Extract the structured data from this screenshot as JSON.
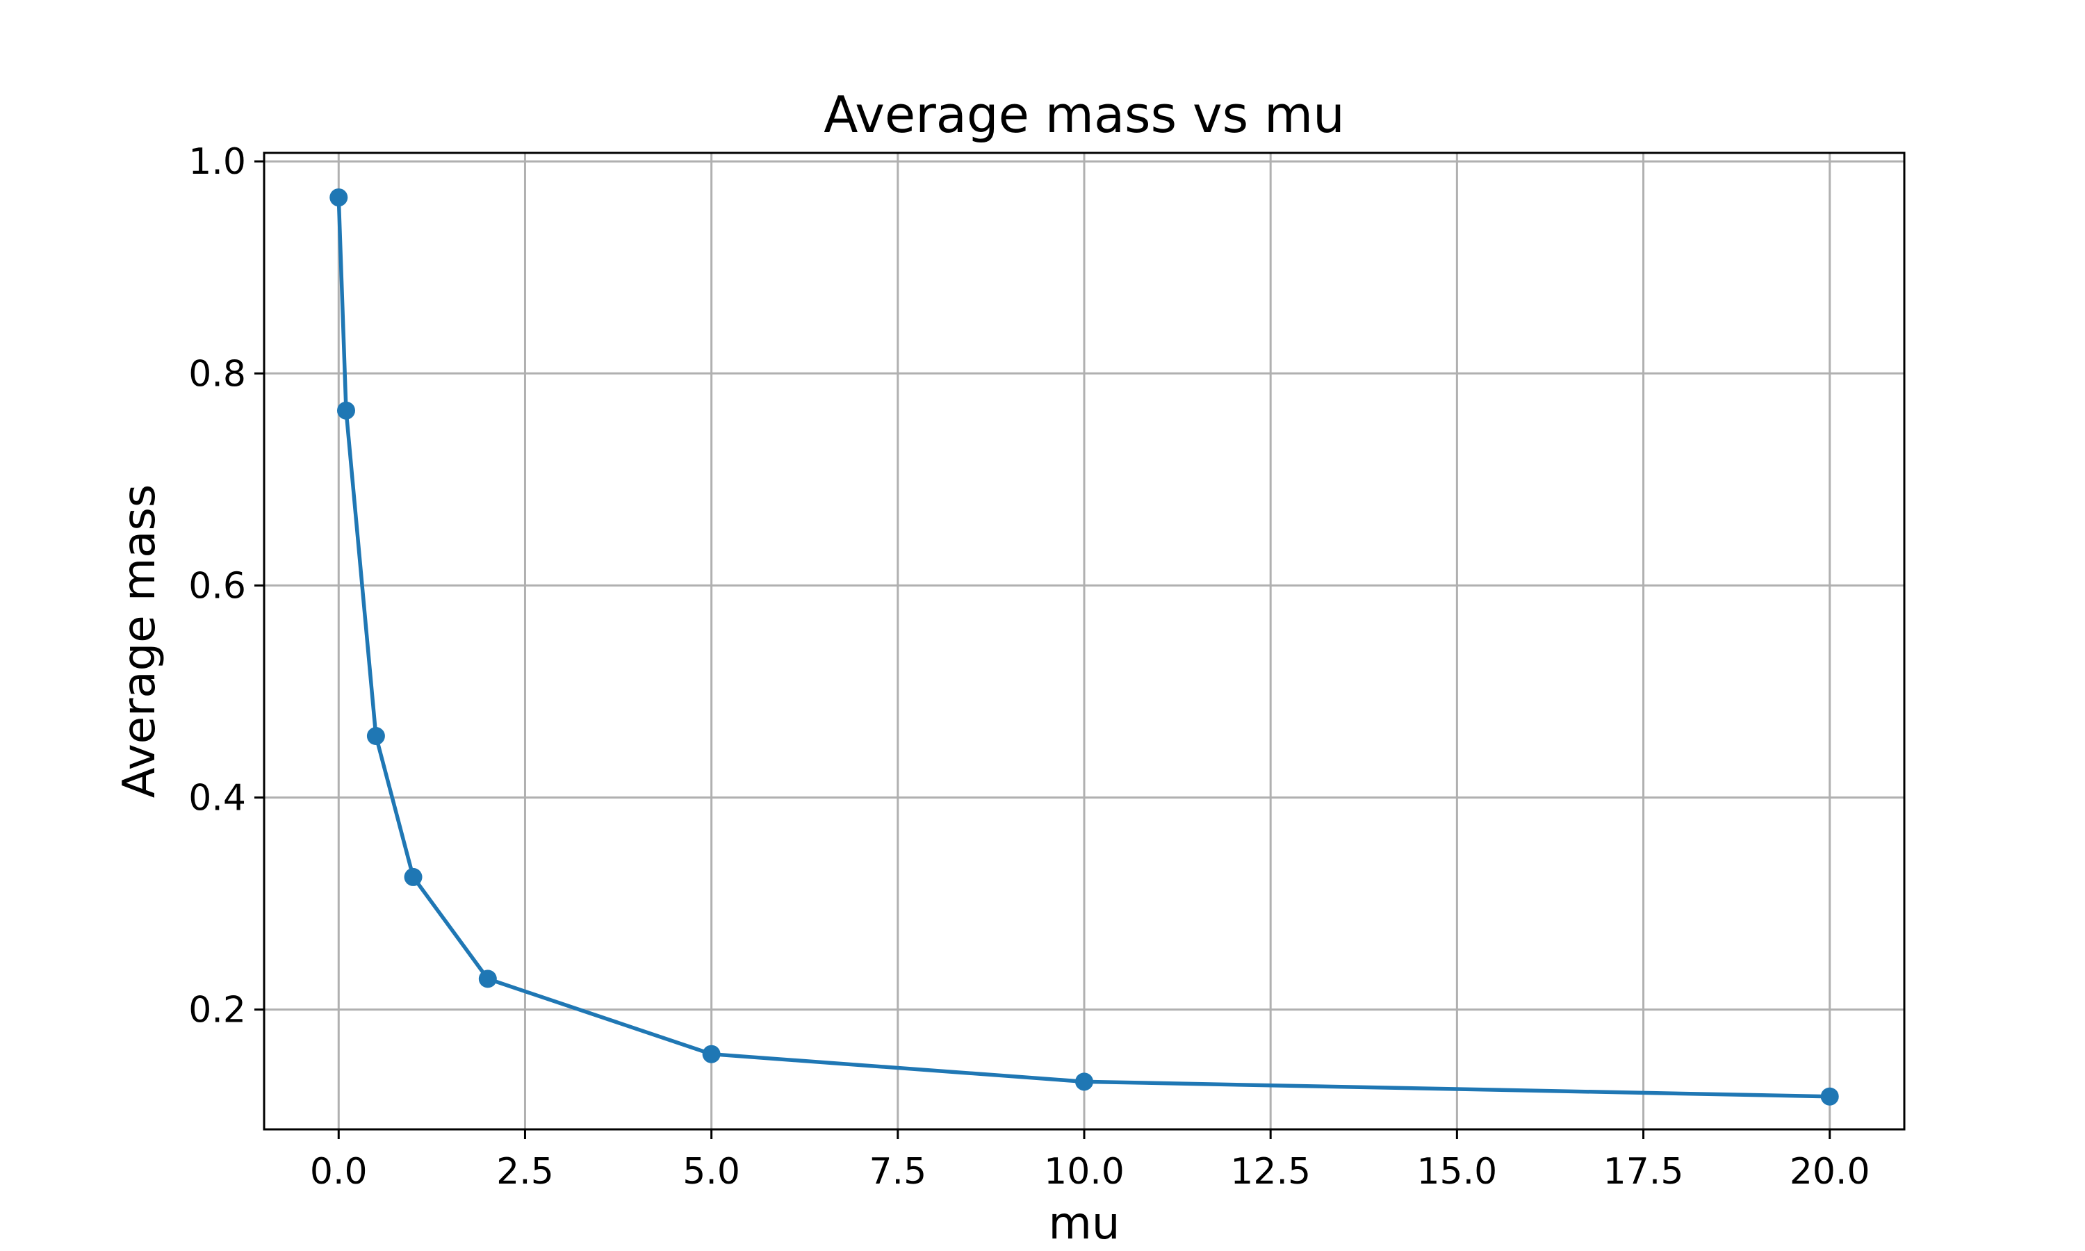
{
  "chart_data": {
    "type": "line",
    "title": "Average mass vs mu",
    "xlabel": "mu",
    "ylabel": "Average mass",
    "xlim": [
      -1.0,
      21.0
    ],
    "ylim": [
      0.087,
      1.008
    ],
    "grid": true,
    "legend": "none",
    "x_ticks": [
      {
        "value": 0.0,
        "label": "0.0"
      },
      {
        "value": 2.5,
        "label": "2.5"
      },
      {
        "value": 5.0,
        "label": "5.0"
      },
      {
        "value": 7.5,
        "label": "7.5"
      },
      {
        "value": 10.0,
        "label": "10.0"
      },
      {
        "value": 12.5,
        "label": "12.5"
      },
      {
        "value": 15.0,
        "label": "15.0"
      },
      {
        "value": 17.5,
        "label": "17.5"
      },
      {
        "value": 20.0,
        "label": "20.0"
      }
    ],
    "y_ticks": [
      {
        "value": 0.2,
        "label": "0.2"
      },
      {
        "value": 0.4,
        "label": "0.4"
      },
      {
        "value": 0.6,
        "label": "0.6"
      },
      {
        "value": 0.8,
        "label": "0.8"
      },
      {
        "value": 1.0,
        "label": "1.0"
      }
    ],
    "series": [
      {
        "color": "#1f77b4",
        "marker": "circle",
        "x": [
          0.0,
          0.1,
          0.5,
          1.0,
          2.0,
          5.0,
          10.0,
          20.0
        ],
        "y": [
          0.966,
          0.765,
          0.458,
          0.325,
          0.229,
          0.158,
          0.132,
          0.118
        ]
      }
    ]
  }
}
